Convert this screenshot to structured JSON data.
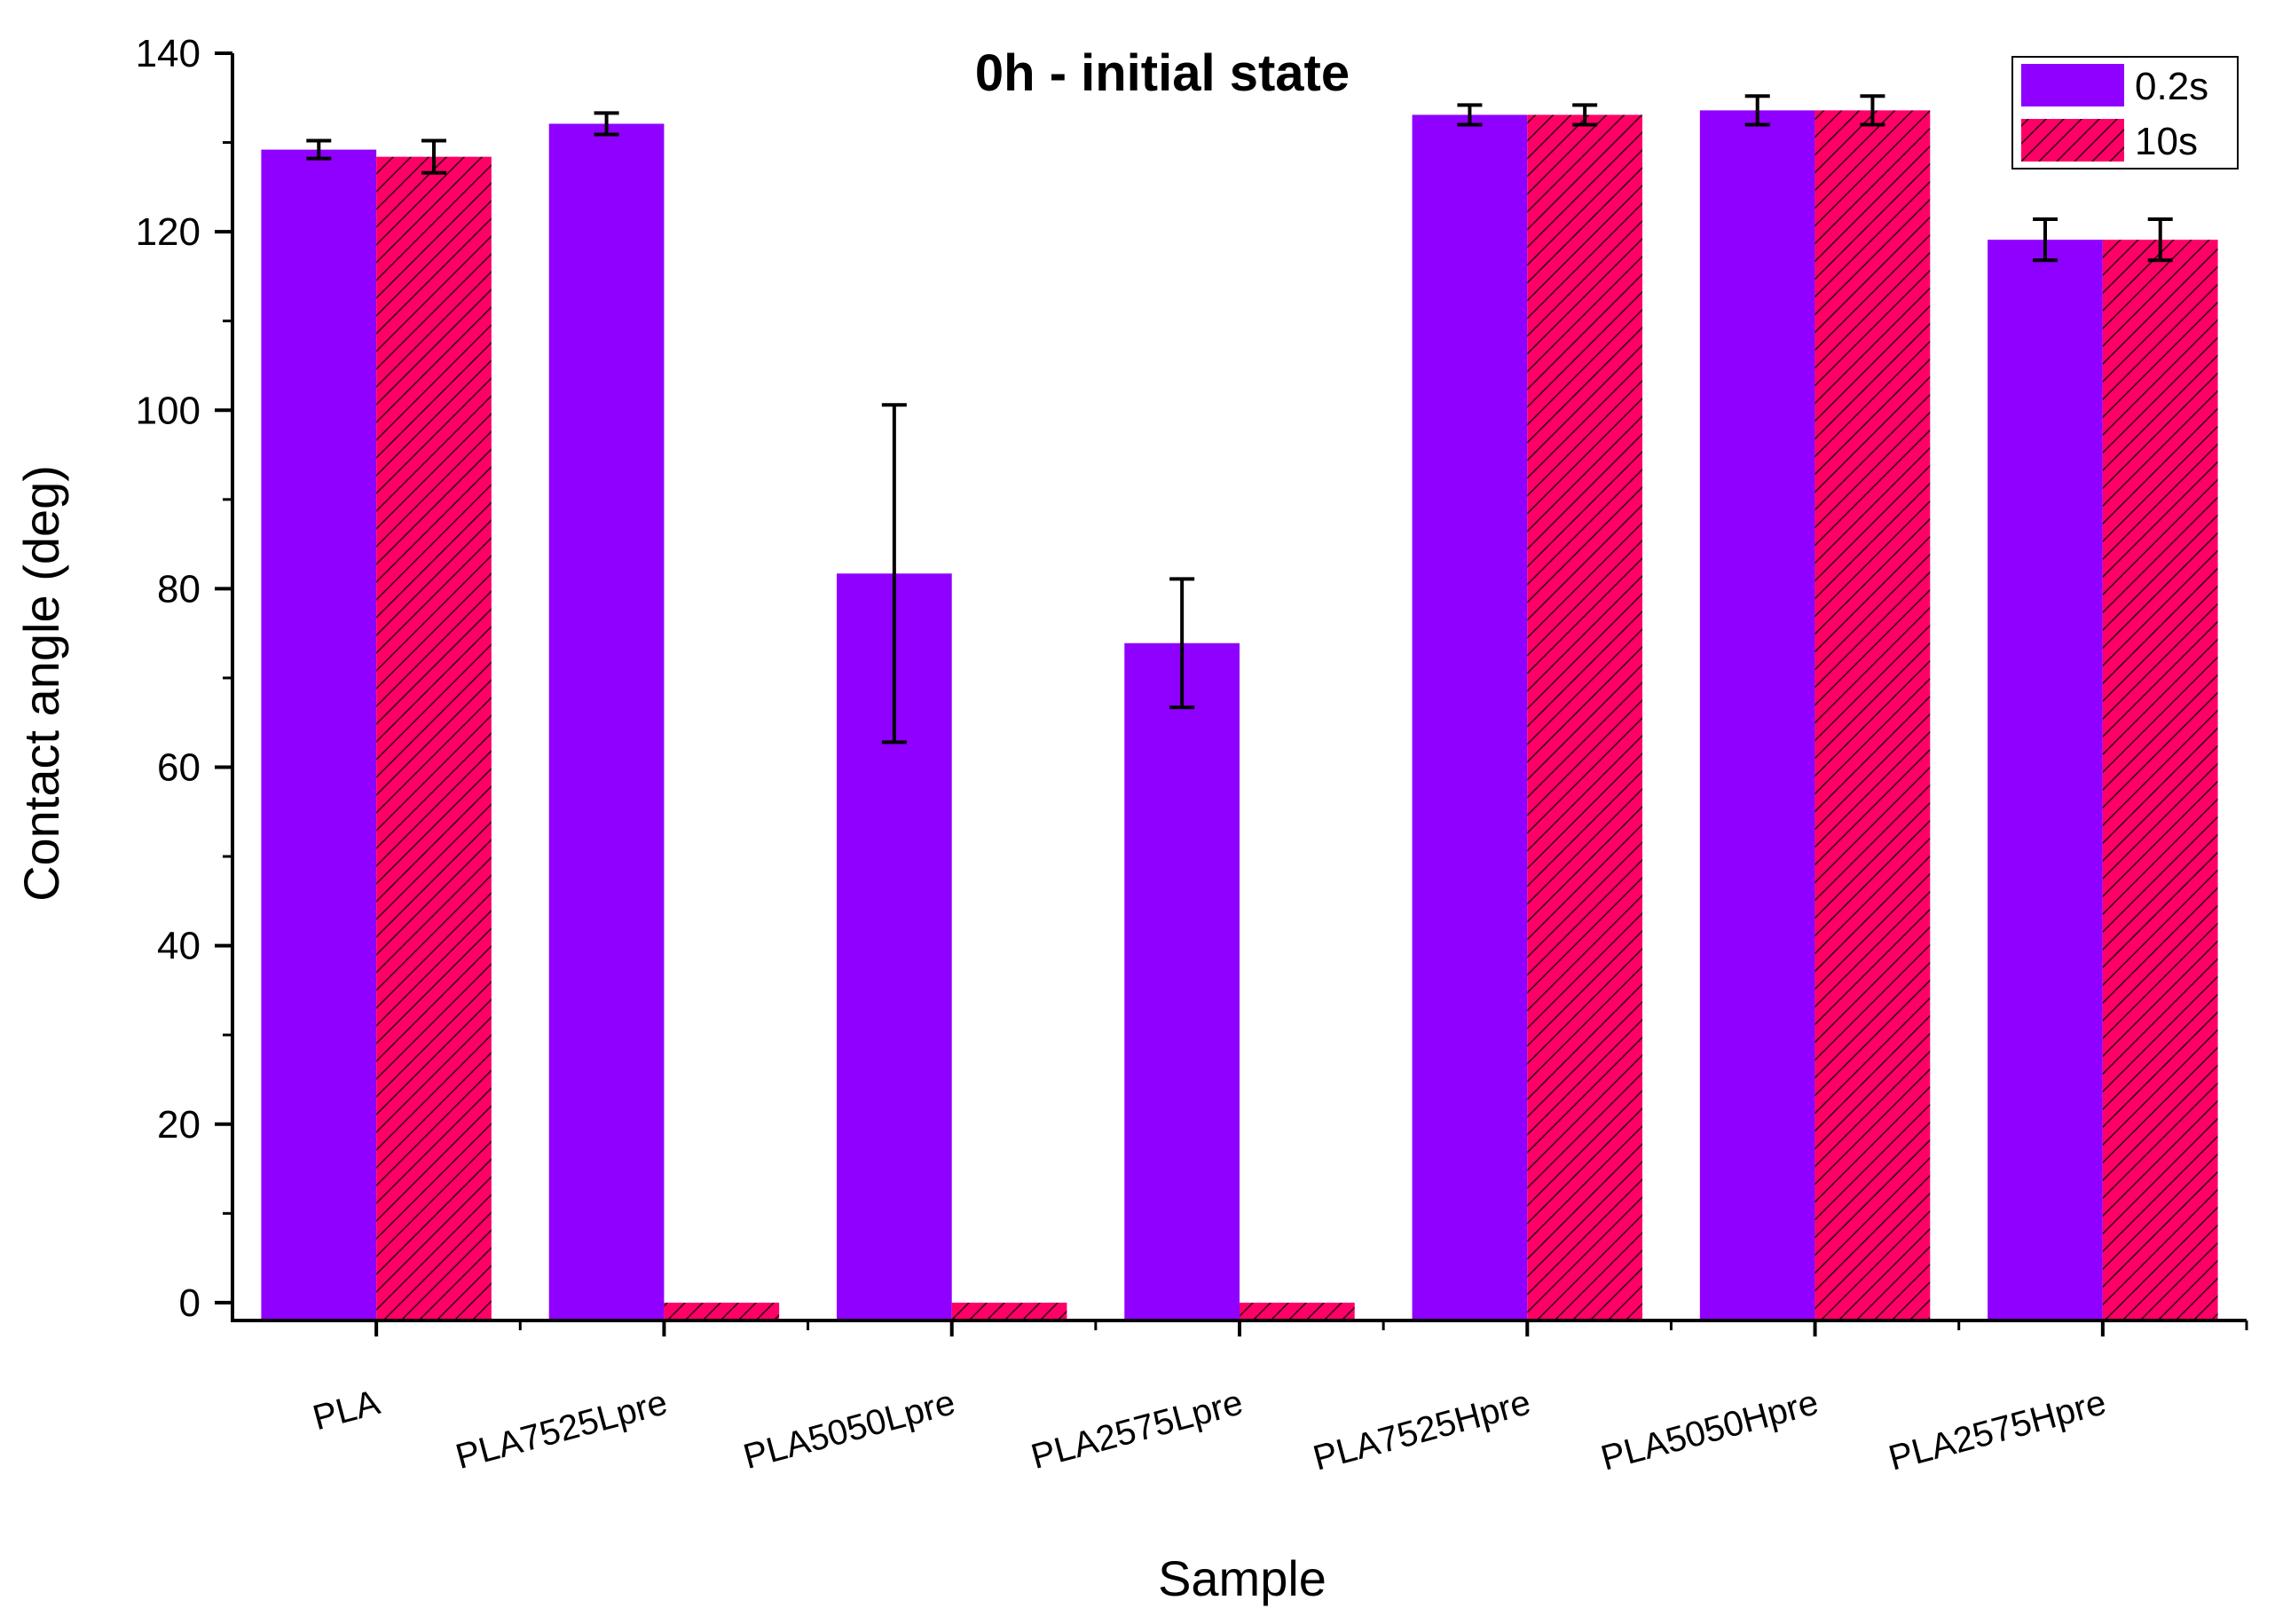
{
  "chart_data": {
    "type": "bar",
    "title": "0h - initial state",
    "xlabel": "Sample",
    "ylabel": "Contact angle (deg)",
    "ylim": [
      -2,
      140
    ],
    "yticks": [
      0,
      20,
      40,
      60,
      80,
      100,
      120,
      140
    ],
    "categories": [
      "PLA",
      "PLA7525Lpre",
      "PLA5050Lpre",
      "PLA2575Lpre",
      "PLA7525Hpre",
      "PLA5050Hpre",
      "PLA2575Hpre"
    ],
    "series": [
      {
        "name": "0.2s",
        "color": "#8f00ff",
        "pattern": "solid",
        "values": [
          129.2,
          132.1,
          81.7,
          73.9,
          133.1,
          133.6,
          119.1
        ],
        "errors": [
          1.0,
          1.2,
          18.9,
          7.2,
          1.1,
          1.6,
          2.3
        ]
      },
      {
        "name": "10s",
        "color": "#ff0066",
        "pattern": "hatch",
        "values": [
          128.4,
          0,
          0,
          0,
          133.1,
          133.6,
          119.1
        ],
        "errors": [
          1.8,
          0,
          0,
          0,
          1.1,
          1.6,
          2.3
        ]
      }
    ],
    "legend_position": "top-right",
    "grid": false
  }
}
